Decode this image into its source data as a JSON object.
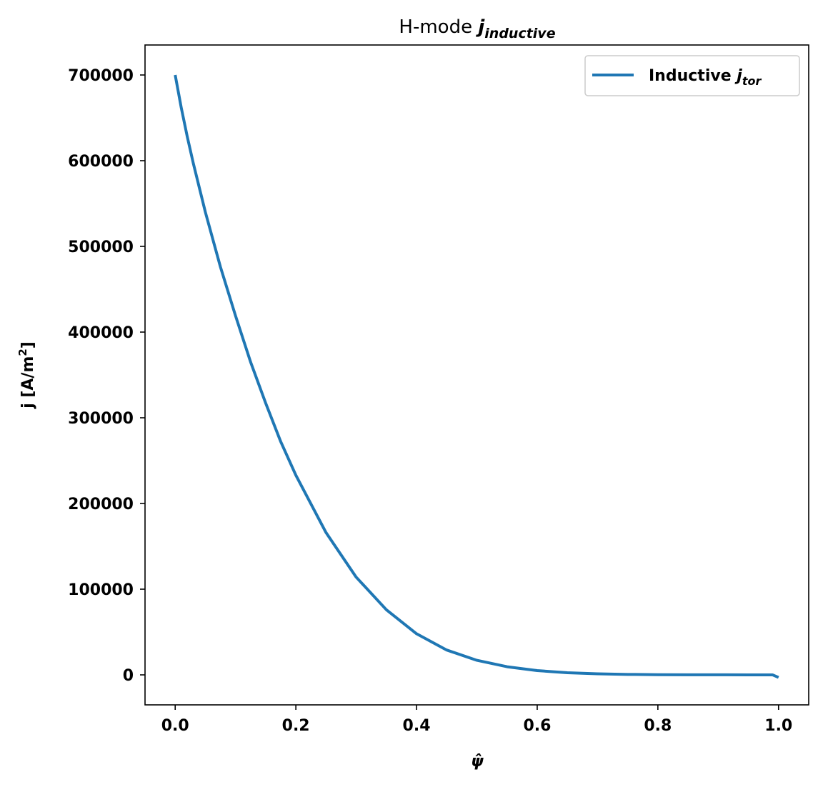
{
  "chart_data": {
    "type": "line",
    "title": {
      "prefix": "H-mode ",
      "symbol": "j",
      "subscript": "inductive"
    },
    "xlabel": "ψ̂",
    "ylabel": {
      "text": "j [A/m",
      "sup": "2",
      "close": "]"
    },
    "xlim": [
      -0.05,
      1.05
    ],
    "ylim": [
      -35000,
      735000
    ],
    "xticks": [
      0.0,
      0.2,
      0.4,
      0.6,
      0.8,
      1.0
    ],
    "xtick_labels": [
      "0.0",
      "0.2",
      "0.4",
      "0.6",
      "0.8",
      "1.0"
    ],
    "yticks": [
      0,
      100000,
      200000,
      300000,
      400000,
      500000,
      600000,
      700000
    ],
    "ytick_labels": [
      "0",
      "100000",
      "200000",
      "300000",
      "400000",
      "500000",
      "600000",
      "700000"
    ],
    "grid": false,
    "legend_position": "top-right",
    "series": [
      {
        "name": {
          "text": "Inductive ",
          "symbol": "j",
          "subscript": "tor"
        },
        "color": "#1f77b4",
        "x": [
          0.0,
          0.01,
          0.02,
          0.03,
          0.05,
          0.075,
          0.1,
          0.125,
          0.15,
          0.175,
          0.2,
          0.25,
          0.3,
          0.35,
          0.4,
          0.45,
          0.5,
          0.55,
          0.6,
          0.65,
          0.7,
          0.75,
          0.8,
          0.85,
          0.9,
          0.95,
          0.99,
          1.0
        ],
        "y": [
          700000,
          662000,
          628000,
          597000,
          540000,
          476000,
          419000,
          365000,
          317000,
          272000,
          233000,
          166000,
          114000,
          76000,
          48000,
          29000,
          17000,
          9500,
          5000,
          2500,
          1200,
          550,
          250,
          120,
          60,
          50,
          40,
          -3000
        ]
      }
    ]
  }
}
